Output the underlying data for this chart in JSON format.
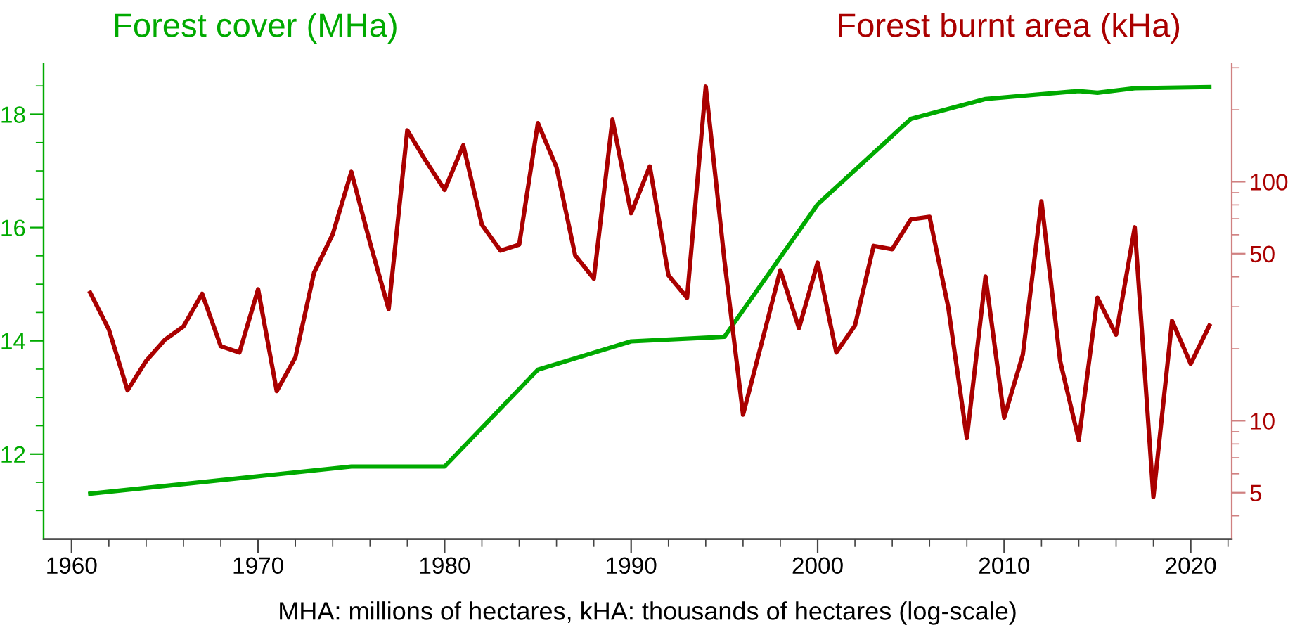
{
  "chart_data": {
    "type": "line",
    "ylabel": "Forest cover (MHa)",
    "y2label": "Forest burnt area (kHa)",
    "xlabel": "MHA: millions of hectares, kHA: thousands of hectares (log-scale)",
    "xlim": [
      1958.5,
      2022.2
    ],
    "xticks": [
      1960,
      {
        "value": 1962,
        "label": null
      },
      {
        "value": 1964,
        "label": null
      },
      {
        "value": 1966,
        "label": null
      },
      {
        "value": 1968,
        "label": null
      },
      1970,
      {
        "value": 1972,
        "label": null
      },
      {
        "value": 1974,
        "label": null
      },
      {
        "value": 1976,
        "label": null
      },
      {
        "value": 1978,
        "label": null
      },
      1980,
      {
        "value": 1982,
        "label": null
      },
      {
        "value": 1984,
        "label": null
      },
      {
        "value": 1986,
        "label": null
      },
      {
        "value": 1988,
        "label": null
      },
      1990,
      {
        "value": 1992,
        "label": null
      },
      {
        "value": 1994,
        "label": null
      },
      {
        "value": 1996,
        "label": null
      },
      {
        "value": 1998,
        "label": null
      },
      2000,
      {
        "value": 2002,
        "label": null
      },
      {
        "value": 2004,
        "label": null
      },
      {
        "value": 2006,
        "label": null
      },
      {
        "value": 2008,
        "label": null
      },
      2010,
      {
        "value": 2012,
        "label": null
      },
      {
        "value": 2014,
        "label": null
      },
      {
        "value": 2016,
        "label": null
      },
      {
        "value": 2018,
        "label": null
      },
      2020,
      {
        "value": 2022,
        "label": null
      }
    ],
    "ylim": [
      10.5,
      18.9
    ],
    "yticks": [
      {
        "value": 11,
        "label": null
      },
      {
        "value": 11.5,
        "label": null
      },
      12,
      {
        "value": 12.5,
        "label": null
      },
      {
        "value": 13,
        "label": null
      },
      {
        "value": 13.5,
        "label": null
      },
      14,
      {
        "value": 14.5,
        "label": null
      },
      {
        "value": 15,
        "label": null
      },
      {
        "value": 15.5,
        "label": null
      },
      16,
      {
        "value": 16.5,
        "label": null
      },
      {
        "value": 17,
        "label": null
      },
      {
        "value": 17.5,
        "label": null
      },
      18,
      {
        "value": 18.5,
        "label": null
      }
    ],
    "log": "y2",
    "y2lim": [
      3.2,
      313
    ],
    "y2ticks": [
      {
        "value": 4,
        "label": null
      },
      5,
      {
        "value": 6,
        "label": null
      },
      {
        "value": 7,
        "label": null
      },
      {
        "value": 8,
        "label": null
      },
      {
        "value": 9,
        "label": null
      },
      10,
      {
        "value": 20,
        "label": null
      },
      {
        "value": 30,
        "label": null
      },
      {
        "value": 40,
        "label": null
      },
      50,
      {
        "value": 60,
        "label": null
      },
      {
        "value": 70,
        "label": null
      },
      {
        "value": 80,
        "label": null
      },
      {
        "value": 90,
        "label": null
      },
      100,
      {
        "value": 200,
        "label": null
      },
      {
        "value": 300,
        "label": null
      }
    ],
    "grid": false,
    "marker": "none",
    "line_style": "solid",
    "series": [
      {
        "color": "#00aa00",
        "x": [
          1961,
          1975,
          1980,
          1985,
          1990,
          1995,
          2000,
          2005,
          2009,
          2014,
          2015,
          2017,
          2021
        ],
        "values": [
          11.3,
          11.78,
          11.78,
          13.49,
          13.99,
          14.07,
          16.41,
          17.92,
          18.27,
          18.41,
          18.38,
          18.46,
          18.48
        ]
      },
      {
        "color": "#aa0000",
        "axis": "y2",
        "x": [
          1961,
          1962,
          1963,
          1964,
          1965,
          1966,
          1967,
          1968,
          1969,
          1970,
          1971,
          1972,
          1973,
          1974,
          1975,
          1976,
          1977,
          1978,
          1979,
          1980,
          1981,
          1982,
          1983,
          1984,
          1985,
          1986,
          1987,
          1988,
          1989,
          1990,
          1991,
          1992,
          1993,
          1994,
          1995,
          1996,
          1997,
          1998,
          1999,
          2000,
          2001,
          2002,
          2003,
          2004,
          2005,
          2006,
          2007,
          2008,
          2009,
          2010,
          2011,
          2012,
          2013,
          2014,
          2015,
          2016,
          2017,
          2018,
          2019,
          2020,
          2021
        ],
        "values": [
          34.3,
          24.1,
          13.4,
          17.8,
          21.8,
          24.8,
          34.0,
          20.5,
          19.3,
          35.5,
          13.3,
          18.4,
          41.6,
          60.3,
          110,
          55.6,
          29.3,
          164,
          122,
          92.5,
          142,
          66,
          51.5,
          54.6,
          176,
          115,
          49.2,
          39.3,
          182,
          73.8,
          116,
          40.6,
          32.7,
          250,
          47,
          10.6,
          21.2,
          42.6,
          24.4,
          45.9,
          19.3,
          25,
          53.9,
          52.2,
          69.6,
          71.3,
          29.9,
          8.45,
          40.1,
          10.3,
          18.9,
          82.8,
          17.8,
          8.3,
          32.7,
          22.9,
          64.5,
          4.8,
          26.2,
          17.3,
          25
        ]
      }
    ]
  }
}
